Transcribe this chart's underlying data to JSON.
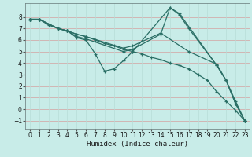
{
  "xlabel": "Humidex (Indice chaleur)",
  "background_color": "#c8ece8",
  "grid_color_h": "#d4a0a0",
  "grid_color_v": "#b8ddd8",
  "line_color": "#2a6e65",
  "xlim": [
    -0.5,
    23.5
  ],
  "ylim": [
    -1.7,
    9.2
  ],
  "yticks": [
    -1,
    0,
    1,
    2,
    3,
    4,
    5,
    6,
    7,
    8
  ],
  "xticks": [
    0,
    1,
    2,
    3,
    4,
    5,
    6,
    7,
    8,
    9,
    10,
    11,
    12,
    13,
    14,
    15,
    16,
    17,
    18,
    19,
    20,
    21,
    22,
    23
  ],
  "lines": [
    {
      "x": [
        0,
        1,
        3,
        4,
        5,
        6,
        7,
        8,
        9,
        10,
        11,
        15,
        16,
        20,
        21,
        22,
        23
      ],
      "y": [
        7.8,
        7.8,
        7.0,
        6.8,
        6.2,
        6.0,
        4.8,
        3.3,
        3.5,
        4.2,
        5.0,
        8.8,
        8.3,
        3.8,
        2.5,
        0.7,
        -1.0
      ]
    },
    {
      "x": [
        0,
        1,
        3,
        4,
        5,
        6,
        10,
        11,
        14,
        15,
        16,
        17,
        20,
        21,
        22,
        23
      ],
      "y": [
        7.8,
        7.8,
        7.0,
        6.8,
        6.3,
        6.1,
        5.0,
        5.2,
        6.5,
        8.8,
        8.2,
        7.0,
        3.8,
        2.5,
        0.5,
        -1.0
      ]
    },
    {
      "x": [
        0,
        1,
        3,
        4,
        5,
        6,
        10,
        11,
        14,
        17,
        20,
        21,
        22,
        23
      ],
      "y": [
        7.8,
        7.8,
        7.0,
        6.8,
        6.5,
        6.3,
        5.3,
        5.5,
        6.6,
        5.0,
        3.9,
        2.5,
        0.5,
        -1.0
      ]
    },
    {
      "x": [
        0,
        1,
        2,
        3,
        4,
        5,
        6,
        7,
        8,
        9,
        10,
        11,
        12,
        13,
        14,
        15,
        16,
        17,
        18,
        19,
        20,
        21,
        22,
        23
      ],
      "y": [
        7.8,
        7.8,
        7.3,
        7.0,
        6.8,
        6.5,
        6.3,
        6.0,
        5.7,
        5.5,
        5.2,
        5.0,
        4.8,
        4.5,
        4.3,
        4.0,
        3.8,
        3.5,
        3.0,
        2.5,
        1.5,
        0.7,
        -0.1,
        -1.0
      ]
    }
  ]
}
